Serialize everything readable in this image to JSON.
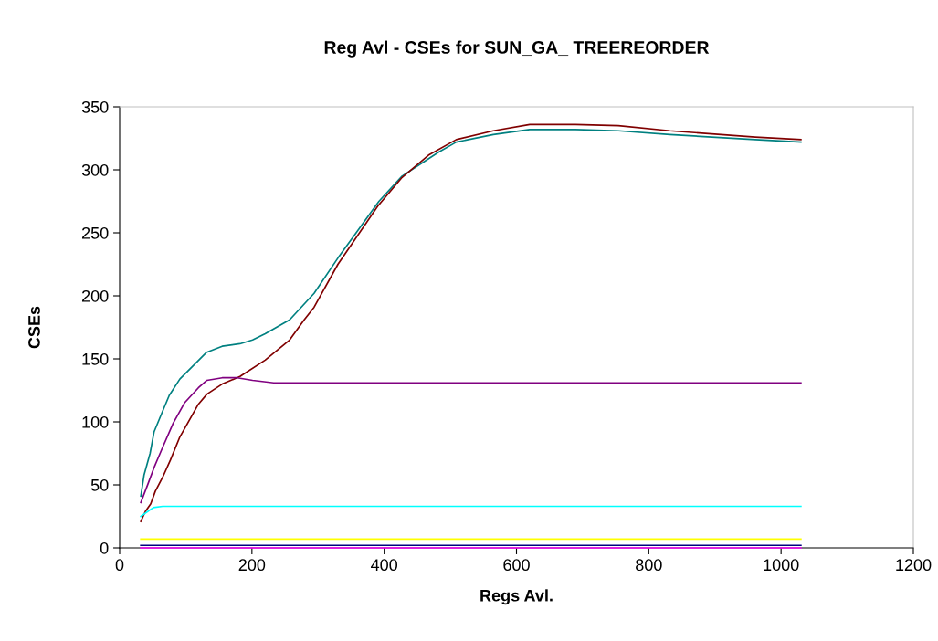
{
  "chart_data": {
    "type": "line",
    "title": "Reg Avl - CSEs for SUN_GA_ TREEREORDER",
    "xlabel": "Regs Avl.",
    "ylabel": "CSEs",
    "xlim": [
      0,
      1200
    ],
    "xticks": [
      0,
      200,
      400,
      600,
      800,
      1000,
      1200
    ],
    "ylim": [
      0,
      350
    ],
    "yticks": [
      0,
      50,
      100,
      150,
      200,
      250,
      300,
      350
    ],
    "grid": false,
    "marker": "none",
    "line_style": "solid",
    "series": [
      {
        "color": "#008080",
        "x": [
          32,
          37,
          46,
          52,
          63,
          75,
          91,
          131,
          155,
          182,
          201,
          220,
          257,
          294,
          330,
          392,
          427,
          482,
          509,
          565,
          620,
          689,
          754,
          832,
          961,
          1030
        ],
        "values": [
          41,
          58,
          75,
          92,
          106,
          121,
          134,
          155,
          160,
          162,
          165,
          170,
          181,
          202,
          230,
          275,
          295,
          314,
          322,
          328,
          332,
          332,
          331,
          328,
          324,
          322
        ]
      },
      {
        "color": "#800000",
        "x": [
          32,
          39,
          47,
          54,
          65,
          77,
          91,
          119,
          132,
          155,
          182,
          220,
          257,
          279,
          294,
          330,
          390,
          427,
          468,
          509,
          565,
          620,
          689,
          754,
          832,
          961,
          1030
        ],
        "values": [
          21,
          29,
          35,
          45,
          56,
          70,
          88,
          114,
          122,
          130,
          136,
          149,
          165,
          181,
          191,
          225,
          271,
          294,
          312,
          324,
          331,
          336,
          336,
          335,
          331,
          326,
          324
        ]
      },
      {
        "color": "#800080",
        "x": [
          32,
          43,
          53,
          66,
          81,
          98,
          119,
          132,
          155,
          178,
          201,
          233,
          1030
        ],
        "values": [
          36,
          51,
          65,
          81,
          99,
          115,
          127,
          133,
          135,
          135,
          133,
          131,
          131
        ]
      },
      {
        "color": "#00ffff",
        "x": [
          32,
          51,
          65,
          1030
        ],
        "values": [
          25,
          32,
          33,
          33
        ]
      },
      {
        "color": "#ffff00",
        "x": [
          32,
          1030
        ],
        "values": [
          7,
          7
        ]
      },
      {
        "color": "#000080",
        "x": [
          32,
          1030
        ],
        "values": [
          2,
          2
        ]
      },
      {
        "color": "#ff00ff",
        "x": [
          32,
          1030
        ],
        "values": [
          0,
          0
        ]
      }
    ]
  }
}
